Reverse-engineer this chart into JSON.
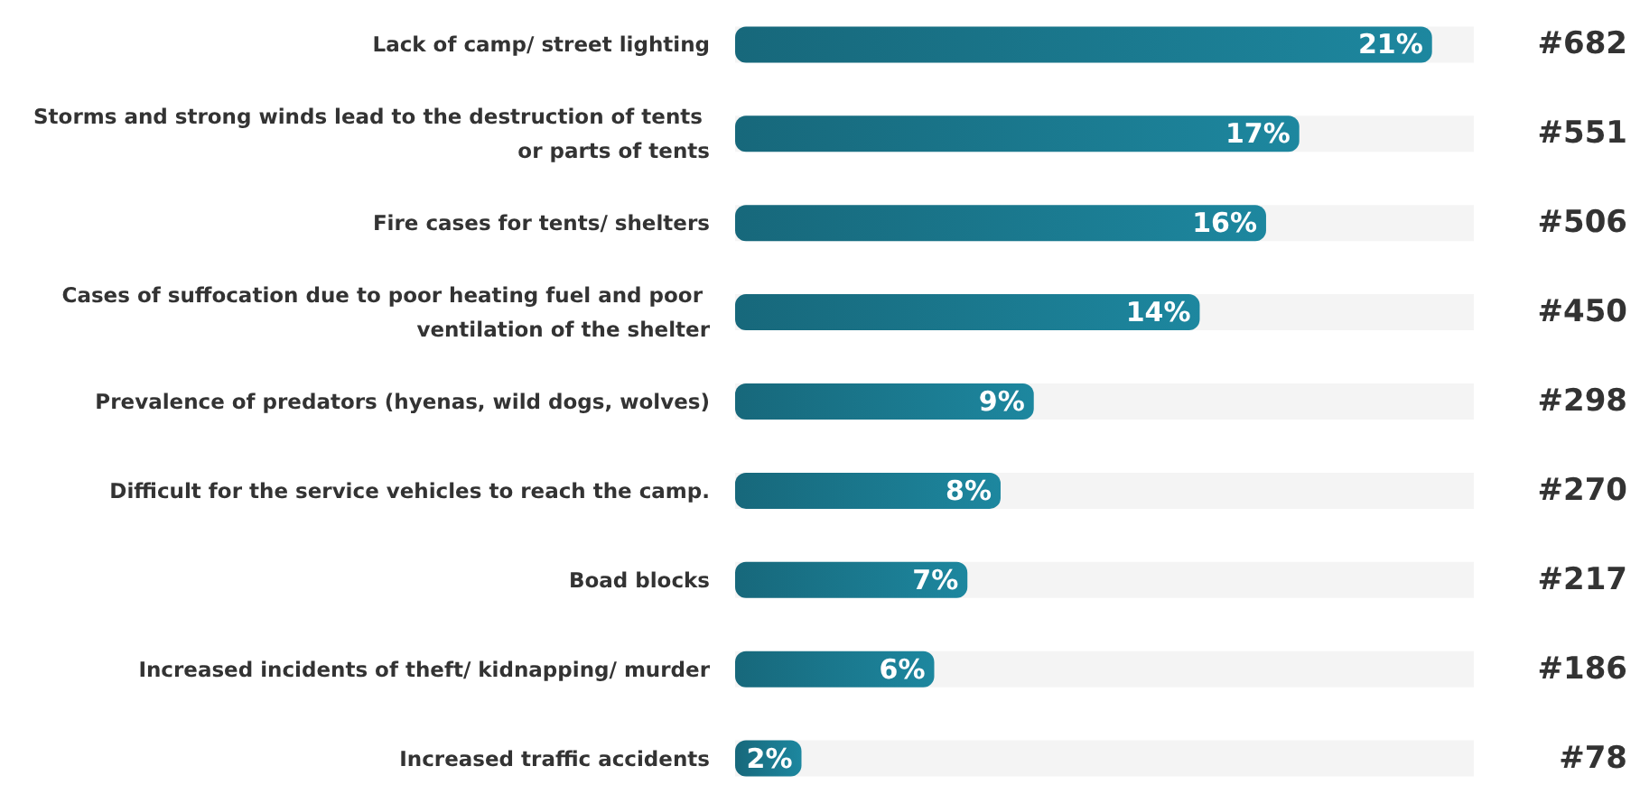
{
  "chart_data": {
    "type": "bar",
    "orientation": "horizontal",
    "categories": [
      "Lack of camp/ street lighting",
      "Storms and strong winds lead to the destruction of tents or parts of tents",
      "Fire cases for tents/ shelters",
      "Cases of suffocation due to poor heating fuel and poor ventilation of the shelter",
      "Prevalence of predators (hyenas, wild dogs, wolves)",
      "Difficult for the service vehicles to reach the camp.",
      "Boad blocks",
      "Increased incidents of theft/ kidnapping/ murder",
      "Increased traffic accidents"
    ],
    "values": [
      21,
      17,
      16,
      14,
      9,
      8,
      7,
      6,
      2
    ],
    "value_labels": [
      "21%",
      "17%",
      "16%",
      "14%",
      "9%",
      "8%",
      "7%",
      "6%",
      "2%"
    ],
    "color": "#17687b",
    "annotations": [
      "#682",
      "#551",
      "#506",
      "#450",
      "#298",
      "#270",
      "#217",
      "#186",
      "#78"
    ]
  }
}
